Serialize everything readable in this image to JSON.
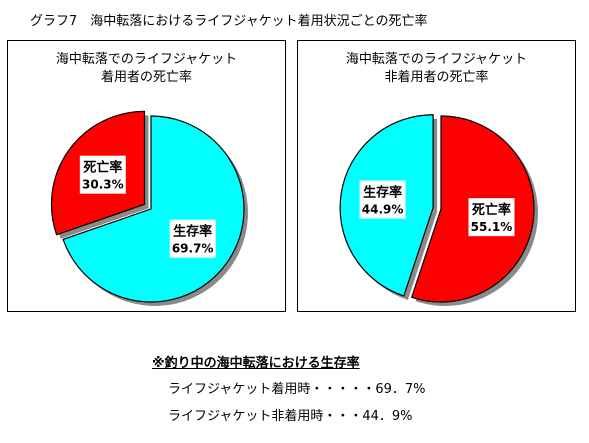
{
  "title": "グラフ7　海中転落におけるライフジャケット着用状況ごとの死亡率",
  "chart_data": [
    {
      "type": "pie",
      "title_line1": "海中転落でのライフジャケット",
      "title_line2": "着用者の死亡率",
      "slices": [
        {
          "name": "死亡率",
          "value": 30.3,
          "label": "30.3%",
          "color": "#ff0000",
          "exploded": true
        },
        {
          "name": "生存率",
          "value": 69.7,
          "label": "69.7%",
          "color": "#00ffff",
          "exploded": false
        }
      ]
    },
    {
      "type": "pie",
      "title_line1": "海中転落でのライフジャケット",
      "title_line2": "非着用者の死亡率",
      "slices": [
        {
          "name": "生存率",
          "value": 44.9,
          "label": "44.9%",
          "color": "#00ffff",
          "exploded": true
        },
        {
          "name": "死亡率",
          "value": 55.1,
          "label": "55.1%",
          "color": "#ff0000",
          "exploded": false
        }
      ]
    }
  ],
  "note": {
    "heading": "※釣り中の海中転落における生存率",
    "line1": "ライフジャケット着用時・・・・・69．7%",
    "line2": "ライフジャケット非着用時・・・44．9%"
  }
}
